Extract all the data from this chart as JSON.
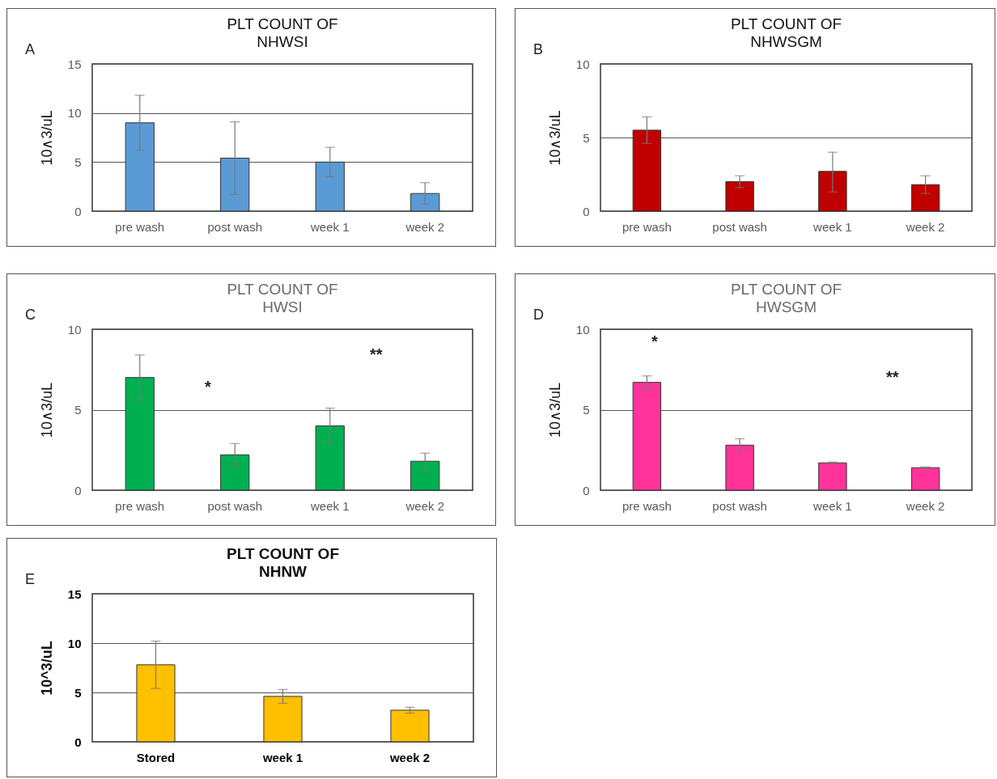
{
  "chart_data": [
    {
      "type": "bar",
      "title": "PLT COUNT OF\nNHWSI",
      "ylabel": "10∧3/uL",
      "annotations": [
        "A"
      ],
      "categories": [
        "pre wash",
        "post wash",
        "week 1",
        "week 2"
      ],
      "values": [
        9.0,
        5.4,
        5.0,
        1.8
      ],
      "errors": [
        [
          6.2,
          11.8
        ],
        [
          1.7,
          9.1
        ],
        [
          3.5,
          6.5
        ],
        [
          0.7,
          2.9
        ]
      ],
      "color": "#5b9bd5",
      "ylim": [
        0,
        15
      ],
      "yticks": [
        0,
        5,
        10,
        15
      ],
      "grid": "y"
    },
    {
      "type": "bar",
      "title": "PLT COUNT OF\nNHWSGM",
      "ylabel": "10∧3/uL",
      "annotations": [
        "B"
      ],
      "categories": [
        "pre wash",
        "post wash",
        "week 1",
        "week 2"
      ],
      "values": [
        5.5,
        2.0,
        2.7,
        1.8
      ],
      "errors": [
        [
          4.6,
          6.4
        ],
        [
          1.6,
          2.4
        ],
        [
          1.3,
          4.0
        ],
        [
          1.2,
          2.4
        ]
      ],
      "color": "#c00000",
      "ylim": [
        0,
        10
      ],
      "yticks": [
        0,
        5,
        10
      ],
      "grid": "y"
    },
    {
      "type": "bar",
      "title": "PLT COUNT OF\nHWSI",
      "ylabel": "10∧3/uL",
      "annotations": [
        "C",
        "*",
        "**"
      ],
      "categories": [
        "pre wash",
        "post wash",
        "week 1",
        "week 2"
      ],
      "values": [
        7.0,
        2.2,
        4.0,
        1.8
      ],
      "errors": [
        [
          5.6,
          8.4
        ],
        [
          1.5,
          2.9
        ],
        [
          2.9,
          5.1
        ],
        [
          1.2,
          2.3
        ]
      ],
      "color": "#00b050",
      "ylim": [
        0,
        10
      ],
      "yticks": [
        0,
        5,
        10
      ],
      "grid": "y"
    },
    {
      "type": "bar",
      "title": "PLT COUNT OF\nHWSGM",
      "ylabel": "10∧3/uL",
      "annotations": [
        "D",
        "*",
        "**"
      ],
      "categories": [
        "pre wash",
        "post wash",
        "week 1",
        "week 2"
      ],
      "values": [
        6.7,
        2.8,
        1.7,
        1.4
      ],
      "errors": [
        0.4,
        0.4,
        0.05,
        0.05
      ],
      "color": "#ff3399",
      "ylim": [
        0,
        10
      ],
      "yticks": [
        0,
        5,
        10
      ],
      "grid": "y"
    },
    {
      "type": "bar",
      "title": "PLT COUNT OF\nNHNW",
      "ylabel": "10^3/uL",
      "annotations": [
        "E"
      ],
      "categories": [
        "Stored",
        "week 1",
        "week 2"
      ],
      "values": [
        7.8,
        4.6,
        3.2
      ],
      "errors": [
        [
          5.4,
          10.2
        ],
        [
          3.9,
          5.3
        ],
        [
          2.9,
          3.5
        ]
      ],
      "color": "#ffc000",
      "ylim": [
        0,
        15
      ],
      "yticks": [
        0,
        5,
        10,
        15
      ],
      "grid": "y"
    }
  ]
}
